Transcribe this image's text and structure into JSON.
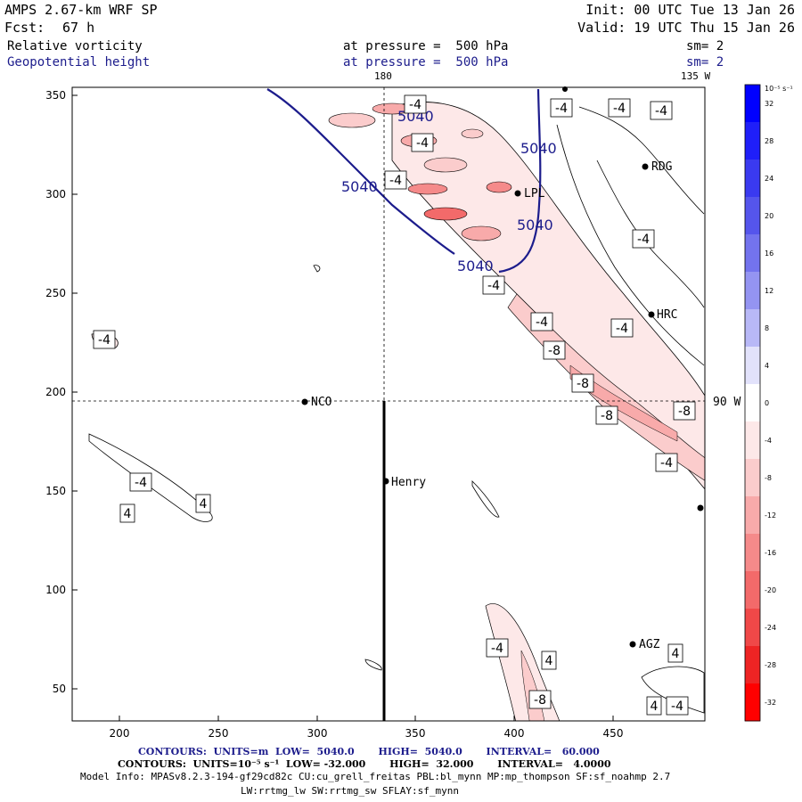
{
  "header": {
    "model": "AMPS 2.67-km WRF SP",
    "init": "Init: 00 UTC Tue 13 Jan 26",
    "fcst_label": "Fcst:",
    "fcst_value": "67 h",
    "valid": "Valid: 19 UTC Thu 15 Jan 26",
    "field1": "Relative vorticity",
    "field1_level": "at pressure =  500 hPa",
    "field1_sm": "sm= 2",
    "field2": "Geopotential height",
    "field2_level": "at pressure =  500 hPa",
    "field2_sm": "sm= 2"
  },
  "axes": {
    "x_ticks": [
      "200",
      "250",
      "300",
      "350",
      "400",
      "450"
    ],
    "y_ticks": [
      "50",
      "100",
      "150",
      "200",
      "250",
      "300",
      "350"
    ],
    "lon_180": "180",
    "lon_135w": "135 W",
    "lon_90w": "90 W"
  },
  "stations": [
    {
      "name": "NCO"
    },
    {
      "name": "Henry"
    },
    {
      "name": "RDG"
    },
    {
      "name": "HRC"
    },
    {
      "name": "AGZ"
    },
    {
      "name": "LPL"
    }
  ],
  "contour_labels": {
    "height": [
      "5040",
      "5040",
      "5040",
      "5040",
      "5040"
    ],
    "vort": [
      "-4",
      "-4",
      "-4",
      "-4",
      "-4",
      "-4",
      "-4",
      "-4",
      "-4",
      "-4",
      "-4",
      "-8",
      "-8",
      "-8",
      "-8",
      "-4",
      "-4",
      "4",
      "4",
      "-4",
      "4",
      "4",
      "4",
      "-4",
      "-8",
      "-4"
    ]
  },
  "colorbar": {
    "unit": "10⁻⁵ s⁻¹",
    "ticks": [
      "32",
      "28",
      "24",
      "20",
      "16",
      "12",
      "8",
      "4",
      "0",
      "-4",
      "-8",
      "-12",
      "-16",
      "-20",
      "-24",
      "-28",
      "-32"
    ],
    "colors": [
      "#0000ff",
      "#1f1ff9",
      "#3a3af0",
      "#5555ec",
      "#7373ee",
      "#9494f2",
      "#b8b8f7",
      "#e2e2fb",
      "#ffffff",
      "#fde8e8",
      "#fbcccc",
      "#f8aaaa",
      "#f58a8a",
      "#f36a6a",
      "#f04848",
      "#ee2424",
      "#ff0000"
    ]
  },
  "footer": {
    "contours1": "CONTOURS:  UNITS=m  LOW=  5040.0       HIGH=  5040.0       INTERVAL=   60.000",
    "contours2": "CONTOURS:  UNITS=10⁻⁵ s⁻¹  LOW= -32.000       HIGH=  32.000       INTERVAL=   4.0000",
    "model_info": "Model Info: MPASv8.2.3-194-gf29cd82c CU:cu_grell_freitas PBL:bl_mynn MP:mp_thompson SF:sf_noahmp 2.7",
    "model_info2": "LW:rrtmg_lw SW:rrtmg_sw SFLAY:sf_mynn"
  }
}
